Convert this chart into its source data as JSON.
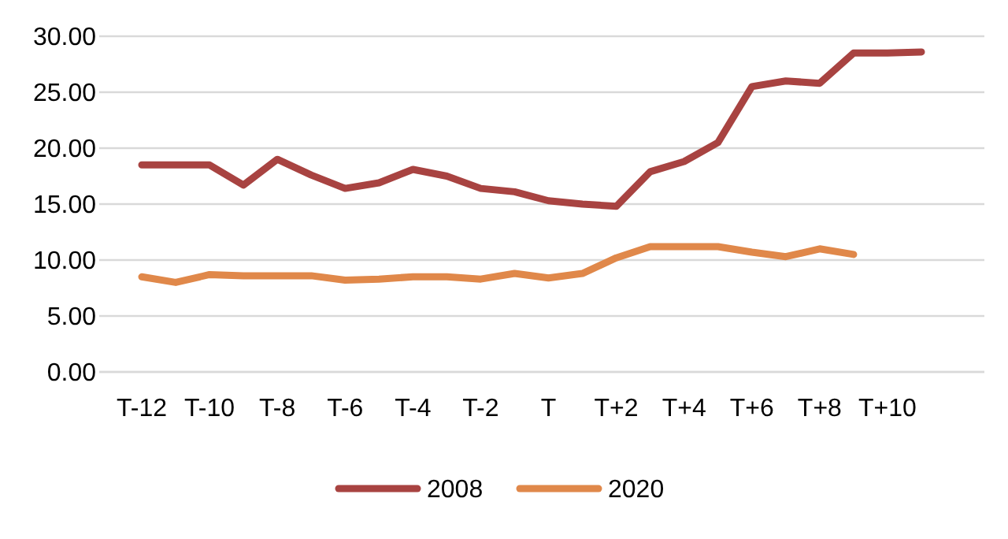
{
  "chart_data": {
    "type": "line",
    "categories": [
      "T-12",
      null,
      "T-10",
      null,
      "T-8",
      null,
      "T-6",
      null,
      "T-4",
      null,
      "T-2",
      null,
      "T",
      null,
      "T+2",
      null,
      "T+4",
      null,
      "T+6",
      null,
      "T+8",
      null,
      "T+10",
      null
    ],
    "series": [
      {
        "name": "2008",
        "color": "#a84341",
        "values": [
          18.5,
          18.5,
          18.5,
          16.7,
          19.0,
          17.6,
          16.4,
          16.9,
          18.1,
          17.5,
          16.4,
          16.1,
          15.3,
          15.0,
          14.8,
          17.9,
          18.8,
          20.5,
          25.5,
          26.0,
          25.8,
          28.5,
          28.5,
          28.6
        ]
      },
      {
        "name": "2020",
        "color": "#e0884a",
        "values": [
          8.5,
          8.0,
          8.7,
          8.6,
          8.6,
          8.6,
          8.2,
          8.3,
          8.5,
          8.5,
          8.3,
          8.8,
          8.4,
          8.8,
          10.2,
          11.2,
          11.2,
          11.2,
          10.7,
          10.3,
          11.0,
          10.5,
          null,
          null
        ]
      }
    ],
    "ylim": [
      0,
      30
    ],
    "yticks": [
      {
        "value": 0,
        "label": "0.00"
      },
      {
        "value": 5,
        "label": "5.00"
      },
      {
        "value": 10,
        "label": "10.00"
      },
      {
        "value": 15,
        "label": "15.00"
      },
      {
        "value": 20,
        "label": "20.00"
      },
      {
        "value": 25,
        "label": "25.00"
      },
      {
        "value": 30,
        "label": "30.00"
      }
    ],
    "grid": "y",
    "legend": "bottom",
    "marker": "none",
    "line_style": "solid"
  }
}
